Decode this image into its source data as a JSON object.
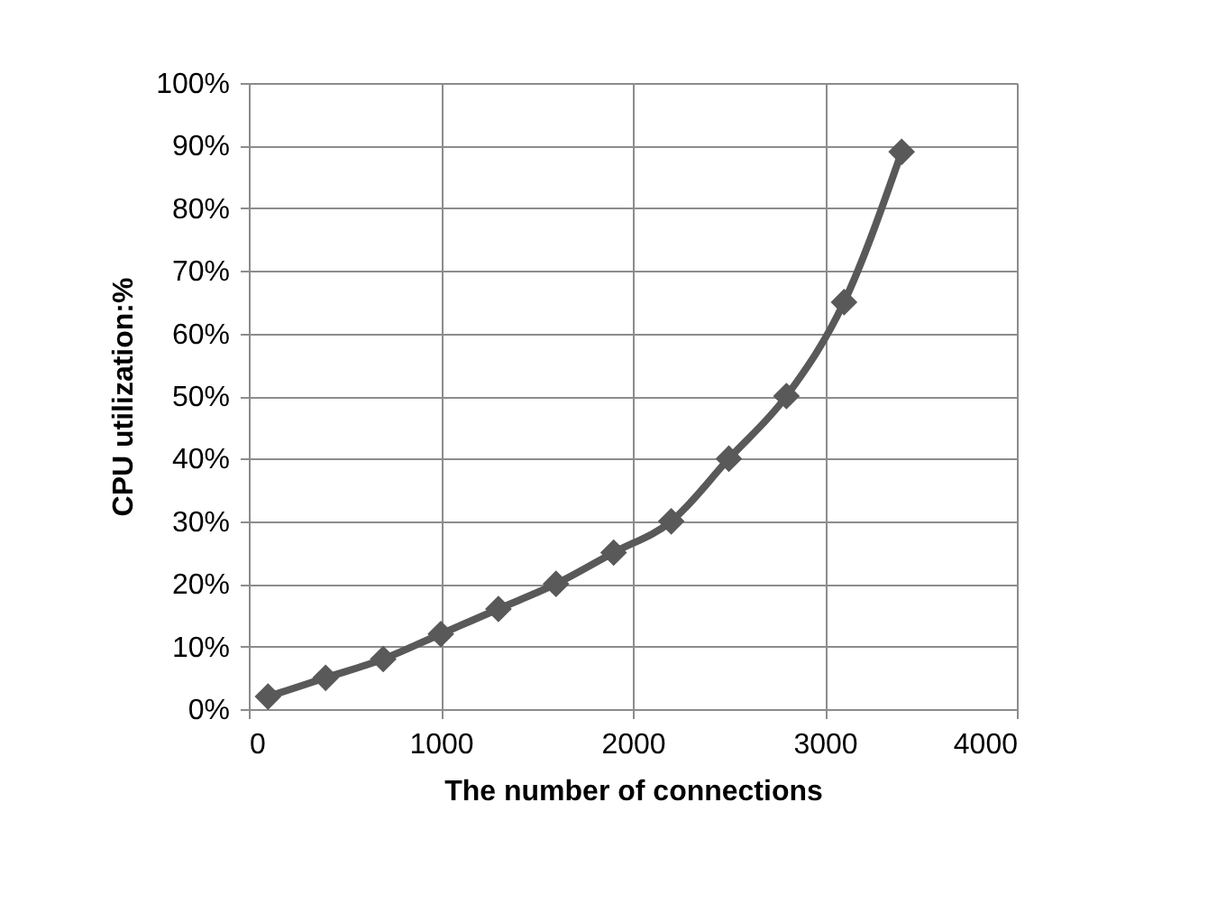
{
  "chart_data": {
    "type": "line",
    "xlabel": "The number of connections",
    "ylabel": "CPU utilization:%",
    "x": [
      100,
      400,
      700,
      1000,
      1300,
      1600,
      1900,
      2200,
      2500,
      2800,
      3100,
      3400
    ],
    "series": [
      {
        "color": "#595959",
        "values": [
          2,
          5,
          8,
          12,
          16,
          20,
          25,
          30,
          40,
          50,
          65,
          89
        ]
      }
    ],
    "xlim": [
      0,
      4000
    ],
    "xticks": [
      0,
      1000,
      2000,
      3000,
      4000
    ],
    "ylim": [
      0,
      100
    ],
    "yticks": [
      {
        "value": 0,
        "label": "0%"
      },
      {
        "value": 10,
        "label": "10%"
      },
      {
        "value": 20,
        "label": "20%"
      },
      {
        "value": 30,
        "label": "30%"
      },
      {
        "value": 40,
        "label": "40%"
      },
      {
        "value": 50,
        "label": "50%"
      },
      {
        "value": 60,
        "label": "60%"
      },
      {
        "value": 70,
        "label": "70%"
      },
      {
        "value": 80,
        "label": "80%"
      },
      {
        "value": 90,
        "label": "90%"
      },
      {
        "value": 100,
        "label": "100%"
      }
    ],
    "grid": true,
    "marker": "diamond",
    "line_style": "solid"
  }
}
